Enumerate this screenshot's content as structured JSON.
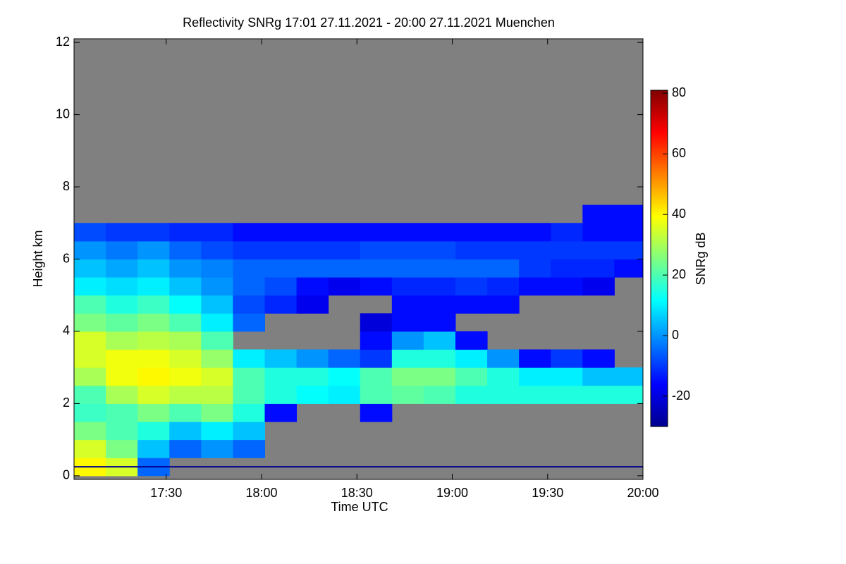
{
  "chart_data": {
    "type": "heatmap",
    "title": "Reflectivity SNRg   17:01 27.11.2021 - 20:00 27.11.2021 Muenchen",
    "xlabel": "Time UTC",
    "ylabel": "Height km",
    "colorbar_label": "SNRg dB",
    "colormap": "jet",
    "missing_color": "#808080",
    "xlim": [
      1021,
      1200
    ],
    "ylim": [
      -0.1,
      12.1
    ],
    "clim": [
      -30,
      81
    ],
    "xticks": [
      {
        "value": 1050,
        "label": "17:30"
      },
      {
        "value": 1080,
        "label": "18:00"
      },
      {
        "value": 1110,
        "label": "18:30"
      },
      {
        "value": 1140,
        "label": "19:00"
      },
      {
        "value": 1170,
        "label": "19:30"
      },
      {
        "value": 1200,
        "label": "20:00"
      }
    ],
    "yticks": [
      0,
      2,
      4,
      6,
      8,
      10,
      12
    ],
    "cticks": [
      -20,
      0,
      20,
      40,
      60,
      80
    ],
    "x": [
      1026,
      1036,
      1046,
      1056,
      1066,
      1076,
      1086,
      1096,
      1106,
      1116,
      1126,
      1136,
      1146,
      1156,
      1166,
      1176,
      1186,
      1196
    ],
    "y": [
      0.25,
      0.75,
      1.25,
      1.75,
      2.25,
      2.75,
      3.25,
      3.75,
      4.25,
      4.75,
      5.25,
      5.75,
      6.25,
      6.75,
      7.25
    ],
    "values": [
      [
        40,
        35,
        25,
        18,
        20,
        30,
        35,
        35,
        25,
        20,
        10,
        5,
        0,
        -8,
        null
      ],
      [
        35,
        25,
        20,
        20,
        30,
        38,
        38,
        30,
        22,
        15,
        8,
        2,
        -3,
        -10,
        null
      ],
      [
        -5,
        5,
        15,
        25,
        35,
        40,
        38,
        32,
        25,
        18,
        10,
        5,
        0,
        -10,
        null
      ],
      [
        null,
        -5,
        5,
        20,
        32,
        38,
        35,
        30,
        20,
        12,
        5,
        0,
        -5,
        -12,
        null
      ],
      [
        null,
        0,
        10,
        25,
        32,
        35,
        28,
        20,
        10,
        5,
        0,
        -2,
        -8,
        -12,
        null
      ],
      [
        null,
        -5,
        5,
        15,
        20,
        20,
        10,
        null,
        -5,
        -8,
        -5,
        -5,
        -10,
        -15,
        null
      ],
      [
        null,
        null,
        null,
        -15,
        15,
        15,
        5,
        null,
        null,
        -12,
        -8,
        -5,
        -10,
        -15,
        null
      ],
      [
        null,
        null,
        null,
        null,
        12,
        15,
        0,
        null,
        null,
        -18,
        -15,
        -5,
        -10,
        -15,
        null
      ],
      [
        null,
        null,
        null,
        null,
        10,
        12,
        -5,
        null,
        null,
        null,
        -18,
        -5,
        -10,
        -15,
        null
      ],
      [
        null,
        null,
        null,
        -15,
        20,
        20,
        -10,
        -15,
        -20,
        null,
        -15,
        -5,
        -8,
        -15,
        null
      ],
      [
        null,
        null,
        null,
        null,
        22,
        25,
        15,
        0,
        -15,
        -15,
        -12,
        -5,
        -8,
        -15,
        null
      ],
      [
        null,
        null,
        null,
        null,
        20,
        25,
        15,
        5,
        -15,
        -15,
        -12,
        -5,
        -8,
        -15,
        null
      ],
      [
        null,
        null,
        null,
        null,
        15,
        20,
        10,
        -15,
        null,
        -15,
        -10,
        -5,
        -10,
        -15,
        null
      ],
      [
        null,
        null,
        null,
        null,
        15,
        15,
        0,
        null,
        null,
        -15,
        -12,
        -5,
        -10,
        -15,
        null
      ],
      [
        null,
        null,
        null,
        null,
        15,
        10,
        -15,
        null,
        null,
        null,
        -15,
        -10,
        -10,
        -15,
        null
      ],
      [
        null,
        null,
        null,
        null,
        15,
        10,
        -10,
        null,
        null,
        null,
        -15,
        -12,
        -10,
        -12,
        null
      ],
      [
        null,
        null,
        null,
        null,
        15,
        5,
        -15,
        null,
        null,
        null,
        -18,
        -12,
        -10,
        -15,
        -15
      ],
      [
        null,
        null,
        null,
        null,
        15,
        5,
        null,
        null,
        null,
        null,
        null,
        -15,
        -10,
        -15,
        -15
      ]
    ]
  }
}
